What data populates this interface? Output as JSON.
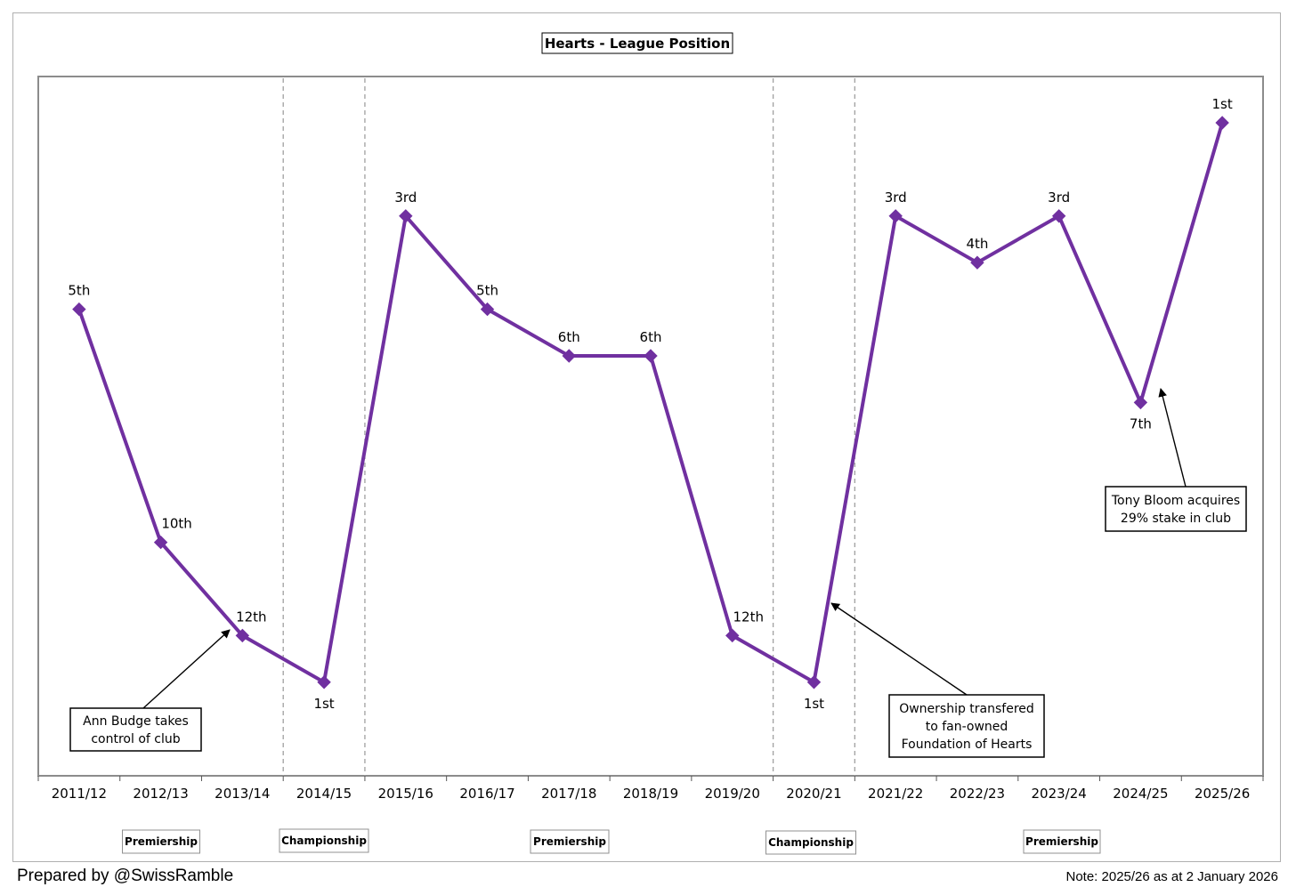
{
  "chart_data": {
    "type": "line",
    "title": "Hearts - League Position",
    "categories": [
      "2011/12",
      "2012/13",
      "2013/14",
      "2014/15",
      "2015/16",
      "2016/17",
      "2017/18",
      "2018/19",
      "2019/20",
      "2020/21",
      "2021/22",
      "2022/23",
      "2023/24",
      "2024/25",
      "2025/26"
    ],
    "series": [
      {
        "values": [
          5,
          10,
          12,
          13,
          3,
          5,
          6,
          6,
          12,
          13,
          3,
          4,
          3,
          7,
          1
        ],
        "labels": [
          "5th",
          "10th",
          "12th",
          "1st",
          "3rd",
          "5th",
          "6th",
          "6th",
          "12th",
          "1st",
          "3rd",
          "4th",
          "3rd",
          "7th",
          "1st"
        ],
        "color": "#7030a0"
      }
    ],
    "y_note": "Overall league position; Championship 1st plotted below Premiership 12th",
    "ylim": [
      0,
      15.3
    ],
    "y_inverted": true,
    "grid": false,
    "divisions": [
      {
        "label": "Premiership",
        "from": "2011/12",
        "to": "2013/14"
      },
      {
        "label": "Championship",
        "from": "2014/15",
        "to": "2014/15"
      },
      {
        "label": "Premiership",
        "from": "2015/16",
        "to": "2019/20"
      },
      {
        "label": "Championship",
        "from": "2020/21",
        "to": "2020/21"
      },
      {
        "label": "Premiership",
        "from": "2021/22",
        "to": "2025/26"
      }
    ],
    "annotations": [
      {
        "lines": [
          "Ann Budge takes",
          "control of club"
        ],
        "points_to": "2013/14"
      },
      {
        "lines": [
          "Ownership transfered",
          "to fan-owned",
          "Foundation of Hearts"
        ],
        "points_to": "2020/21"
      },
      {
        "lines": [
          "Tony Bloom acquires",
          "29% stake in club"
        ],
        "points_to": "2024/25"
      }
    ]
  },
  "footer": {
    "credit": "Prepared by @SwissRamble",
    "note": "Note: 2025/26 as at 2 January 2026"
  }
}
